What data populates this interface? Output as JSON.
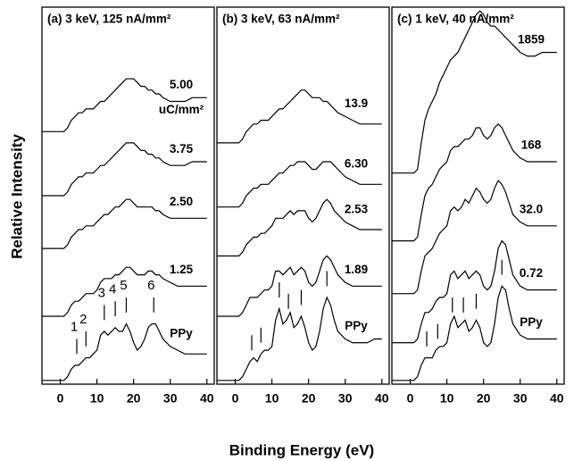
{
  "xlabel": "Binding Energy (eV)",
  "ylabel": "Relative Intensity",
  "chart_data": [
    {
      "type": "line",
      "title": "(a) 3 keV, 125 nA/mm²",
      "annotation": "uC/mm²",
      "x": [
        -5,
        0,
        1,
        2,
        3,
        4,
        5,
        6,
        7,
        8,
        9,
        10,
        11,
        12,
        13,
        14,
        15,
        16,
        17,
        18,
        19,
        20,
        21,
        22,
        23,
        24,
        25,
        26,
        27,
        28,
        30,
        32,
        34,
        36,
        38,
        40
      ],
      "xlim": [
        -5,
        42
      ],
      "xticks": [
        0,
        10,
        20,
        30,
        40
      ],
      "ylim": [
        0,
        100
      ],
      "peak_positions": [
        4.5,
        7,
        12,
        15,
        18,
        25.5
      ],
      "peak_labels": [
        "1",
        "2",
        "3",
        "4",
        "5",
        "6"
      ],
      "series": [
        {
          "name": "PPy",
          "color": "#000000",
          "values": [
            1,
            1,
            1,
            2,
            4,
            5,
            5,
            6,
            7,
            7,
            8,
            9,
            13,
            14,
            13,
            14,
            15,
            14,
            14,
            16,
            14,
            11,
            9,
            10,
            12,
            15,
            16,
            16,
            14,
            12,
            10,
            9,
            8,
            8,
            8,
            8
          ]
        },
        {
          "name": "1.25",
          "color": "#000000",
          "values": [
            18,
            18,
            18,
            19,
            21,
            22,
            22,
            23,
            24,
            24,
            24,
            25,
            27,
            28,
            28,
            28,
            29,
            29,
            30,
            31,
            31,
            30,
            29,
            29,
            29,
            30,
            30,
            29,
            29,
            28,
            27,
            26,
            26,
            26,
            26,
            26
          ]
        },
        {
          "name": "2.50",
          "color": "#000000",
          "values": [
            36,
            36,
            36,
            37,
            39,
            40,
            41,
            41,
            42,
            42,
            42,
            43,
            44,
            45,
            45,
            46,
            47,
            47,
            48,
            49,
            49,
            48,
            47,
            47,
            47,
            47,
            47,
            46,
            46,
            45,
            44,
            44,
            44,
            44,
            44,
            44
          ]
        },
        {
          "name": "3.75",
          "color": "#000000",
          "values": [
            50,
            50,
            50,
            51,
            53,
            54,
            55,
            55,
            56,
            56,
            56,
            57,
            58,
            58,
            59,
            60,
            61,
            62,
            63,
            64,
            64,
            64,
            63,
            62,
            62,
            61,
            61,
            60,
            60,
            59,
            58,
            58,
            58,
            59,
            59,
            59
          ]
        },
        {
          "name": "5.00",
          "color": "#000000",
          "values": [
            67,
            67,
            67,
            68,
            70,
            71,
            72,
            72,
            73,
            73,
            73,
            74,
            75,
            75,
            76,
            77,
            78,
            79,
            80,
            81,
            81,
            81,
            80,
            79,
            79,
            78,
            78,
            77,
            77,
            76,
            75,
            75,
            75,
            76,
            76,
            76
          ]
        }
      ]
    },
    {
      "type": "line",
      "title": "(b) 3 keV, 63 nA/mm²",
      "x": [
        -5,
        0,
        1,
        2,
        3,
        4,
        5,
        6,
        7,
        8,
        9,
        10,
        11,
        12,
        13,
        14,
        15,
        16,
        17,
        18,
        19,
        20,
        21,
        22,
        23,
        24,
        25,
        26,
        27,
        28,
        30,
        32,
        34,
        36,
        38,
        40
      ],
      "xlim": [
        -5,
        42
      ],
      "xticks": [
        0,
        10,
        20,
        30,
        40
      ],
      "ylim": [
        0,
        100
      ],
      "peak_positions": [
        4.5,
        7,
        12,
        14.5,
        18,
        25
      ],
      "series": [
        {
          "name": "PPy",
          "color": "#000000",
          "values": [
            1,
            1,
            1,
            2,
            4,
            6,
            7,
            6,
            8,
            9,
            9,
            10,
            17,
            20,
            16,
            17,
            19,
            15,
            16,
            18,
            15,
            11,
            9,
            10,
            14,
            20,
            23,
            21,
            17,
            14,
            12,
            11,
            11,
            11,
            12,
            12
          ]
        },
        {
          "name": "1.89",
          "color": "#000000",
          "values": [
            18,
            18,
            18,
            19,
            21,
            23,
            23,
            23,
            24,
            25,
            25,
            26,
            30,
            30,
            29,
            30,
            31,
            29,
            30,
            31,
            30,
            27,
            26,
            27,
            30,
            33,
            34,
            33,
            31,
            29,
            27,
            26,
            26,
            26,
            26,
            26
          ]
        },
        {
          "name": "2.53",
          "color": "#000000",
          "values": [
            34,
            34,
            34,
            35,
            37,
            38,
            39,
            39,
            40,
            40,
            41,
            42,
            44,
            44,
            44,
            45,
            46,
            45,
            46,
            46,
            46,
            44,
            43,
            44,
            46,
            48,
            49,
            48,
            46,
            45,
            43,
            42,
            41,
            41,
            41,
            41
          ]
        },
        {
          "name": "6.30",
          "color": "#000000",
          "values": [
            47,
            47,
            47,
            48,
            50,
            51,
            52,
            52,
            53,
            53,
            53,
            54,
            55,
            56,
            56,
            57,
            58,
            58,
            59,
            59,
            59,
            58,
            57,
            57,
            58,
            59,
            59,
            59,
            58,
            57,
            55,
            54,
            53,
            53,
            53,
            53
          ]
        },
        {
          "name": "13.9",
          "color": "#000000",
          "values": [
            64,
            64,
            64,
            65,
            67,
            68,
            69,
            69,
            70,
            70,
            70,
            71,
            72,
            73,
            73,
            74,
            75,
            76,
            77,
            78,
            78,
            77,
            76,
            76,
            76,
            75,
            75,
            74,
            73,
            72,
            71,
            70,
            69,
            69,
            69,
            69
          ]
        }
      ]
    },
    {
      "type": "line",
      "title": "(c) 1 keV, 40 nA/mm²",
      "x": [
        -5,
        0,
        1,
        2,
        3,
        4,
        5,
        6,
        7,
        8,
        9,
        10,
        11,
        12,
        13,
        14,
        15,
        16,
        17,
        18,
        19,
        20,
        21,
        22,
        23,
        24,
        25,
        26,
        27,
        28,
        30,
        32,
        34,
        36,
        38,
        40
      ],
      "xlim": [
        -5,
        42
      ],
      "xticks": [
        0,
        10,
        20,
        30,
        40
      ],
      "ylim": [
        0,
        100
      ],
      "peak_positions": [
        4.5,
        7.5,
        11.5,
        14.5,
        18,
        25
      ],
      "series": [
        {
          "name": "PPy",
          "color": "#000000",
          "values": [
            1,
            1,
            1,
            2,
            5,
            7,
            7,
            7,
            9,
            10,
            10,
            11,
            16,
            18,
            15,
            16,
            17,
            14,
            15,
            17,
            15,
            11,
            10,
            11,
            16,
            23,
            26,
            25,
            20,
            16,
            13,
            12,
            12,
            12,
            12,
            12
          ]
        },
        {
          "name": "0.72",
          "color": "#000000",
          "values": [
            11,
            11,
            11,
            12,
            16,
            19,
            19,
            20,
            22,
            23,
            23,
            24,
            29,
            30,
            28,
            29,
            30,
            28,
            29,
            30,
            29,
            26,
            25,
            26,
            30,
            36,
            38,
            37,
            33,
            29,
            26,
            25,
            25,
            25,
            25,
            25
          ]
        },
        {
          "name": "32.0",
          "color": "#000000",
          "values": [
            24,
            24,
            24,
            25,
            30,
            34,
            35,
            36,
            38,
            40,
            41,
            42,
            46,
            47,
            46,
            47,
            49,
            48,
            50,
            52,
            51,
            49,
            48,
            49,
            52,
            54,
            53,
            51,
            48,
            45,
            43,
            42,
            42,
            42,
            42,
            42
          ]
        },
        {
          "name": "168",
          "color": "#000000",
          "values": [
            38,
            38,
            38,
            39,
            45,
            50,
            52,
            53,
            55,
            57,
            58,
            59,
            62,
            63,
            63,
            64,
            65,
            65,
            66,
            68,
            68,
            66,
            65,
            66,
            68,
            69,
            68,
            66,
            64,
            62,
            60,
            59,
            59,
            59,
            59,
            59
          ]
        },
        {
          "name": "1859",
          "color": "#000000",
          "values": [
            56,
            56,
            56,
            57,
            64,
            70,
            73,
            75,
            77,
            80,
            82,
            84,
            86,
            87,
            88,
            90,
            92,
            94,
            96,
            98,
            99,
            98,
            96,
            95,
            95,
            94,
            93,
            92,
            91,
            90,
            88,
            87,
            87,
            88,
            88,
            88
          ]
        }
      ]
    }
  ]
}
